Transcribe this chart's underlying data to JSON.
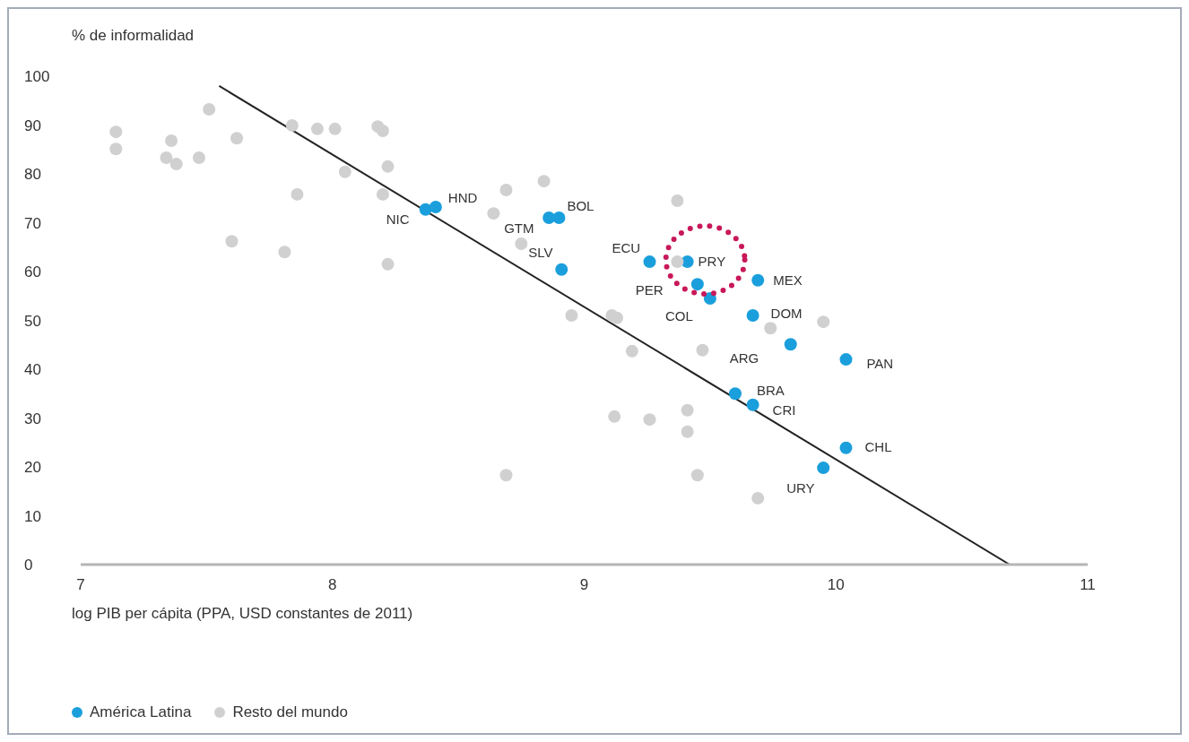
{
  "chart_data": {
    "type": "scatter",
    "ylabel": "% de informalidad",
    "xlabel": "log PIB per cápita (PPA, USD constantes de 2011)",
    "xlim": [
      7,
      11
    ],
    "xticks": [
      7,
      8,
      9,
      10,
      11
    ],
    "ylim": [
      0,
      100
    ],
    "yticks": [
      0,
      10,
      20,
      30,
      40,
      50,
      60,
      70,
      80,
      90,
      100
    ],
    "grid": false,
    "legend": "bottom left",
    "marker": "circle",
    "series": [
      {
        "name": "América Latina",
        "color": "#1a9fdc",
        "x": [
          8.37,
          8.41,
          8.86,
          8.9,
          8.91,
          9.26,
          9.41,
          9.45,
          9.5,
          9.69,
          9.67,
          9.82,
          10.04,
          9.6,
          9.67,
          10.04,
          9.95
        ],
        "values": [
          72.7,
          73.2,
          71,
          71,
          60.4,
          62,
          62,
          57.4,
          54.5,
          58.2,
          51,
          45.1,
          42,
          35,
          32.7,
          23.9,
          19.8
        ]
      },
      {
        "name": "Resto del mundo",
        "color": "#d0d0d0",
        "x": [
          7.14,
          7.14,
          7.36,
          7.34,
          7.38,
          7.47,
          7.51,
          7.62,
          7.6,
          7.81,
          7.84,
          7.86,
          7.94,
          8.01,
          8.05,
          8.18,
          8.2,
          8.22,
          8.2,
          8.22,
          8.69,
          8.84,
          8.64,
          8.75,
          9.37,
          8.95,
          9.11,
          9.13,
          9.19,
          9.47,
          9.74,
          9.95,
          9.12,
          9.26,
          9.41,
          9.41,
          8.69,
          9.45,
          9.69,
          9.37
        ],
        "values": [
          88.6,
          85.1,
          86.8,
          83.3,
          82,
          83.3,
          93.2,
          87.3,
          66.2,
          64,
          89.9,
          75.8,
          89.2,
          89.2,
          80.4,
          89.7,
          88.8,
          81.5,
          75.8,
          61.5,
          76.7,
          78.5,
          71.9,
          65.7,
          74.5,
          51,
          51,
          50.5,
          43.7,
          43.9,
          48.4,
          49.7,
          30.3,
          29.7,
          31.6,
          27.2,
          18.3,
          18.3,
          13.6,
          62
        ]
      },
      {
        "type": "line",
        "marker": "none",
        "color": "#222222",
        "x": [
          7.55,
          10.69
        ],
        "values": [
          98,
          0
        ]
      }
    ],
    "annotations": [
      {
        "text": "NIC",
        "x": 8.37,
        "y": 72.7
      },
      {
        "text": "HND",
        "x": 8.41,
        "y": 73.2
      },
      {
        "text": "GTM",
        "x": 8.86,
        "y": 71
      },
      {
        "text": "BOL",
        "x": 8.9,
        "y": 71
      },
      {
        "text": "SLV",
        "x": 8.91,
        "y": 60.4
      },
      {
        "text": "ECU",
        "x": 9.26,
        "y": 62
      },
      {
        "text": "PRY",
        "x": 9.41,
        "y": 62
      },
      {
        "text": "PER",
        "x": 9.45,
        "y": 57.4
      },
      {
        "text": "COL",
        "x": 9.5,
        "y": 54.5
      },
      {
        "text": "MEX",
        "x": 9.69,
        "y": 58.2
      },
      {
        "text": "DOM",
        "x": 9.67,
        "y": 51
      },
      {
        "text": "ARG",
        "x": 9.82,
        "y": 45.1
      },
      {
        "text": "PAN",
        "x": 10.04,
        "y": 42
      },
      {
        "text": "BRA",
        "x": 9.6,
        "y": 35
      },
      {
        "text": "CRI",
        "x": 9.67,
        "y": 32.7
      },
      {
        "text": "CHL",
        "x": 10.04,
        "y": 23.9
      },
      {
        "text": "URY",
        "x": 9.95,
        "y": 19.8
      }
    ]
  }
}
